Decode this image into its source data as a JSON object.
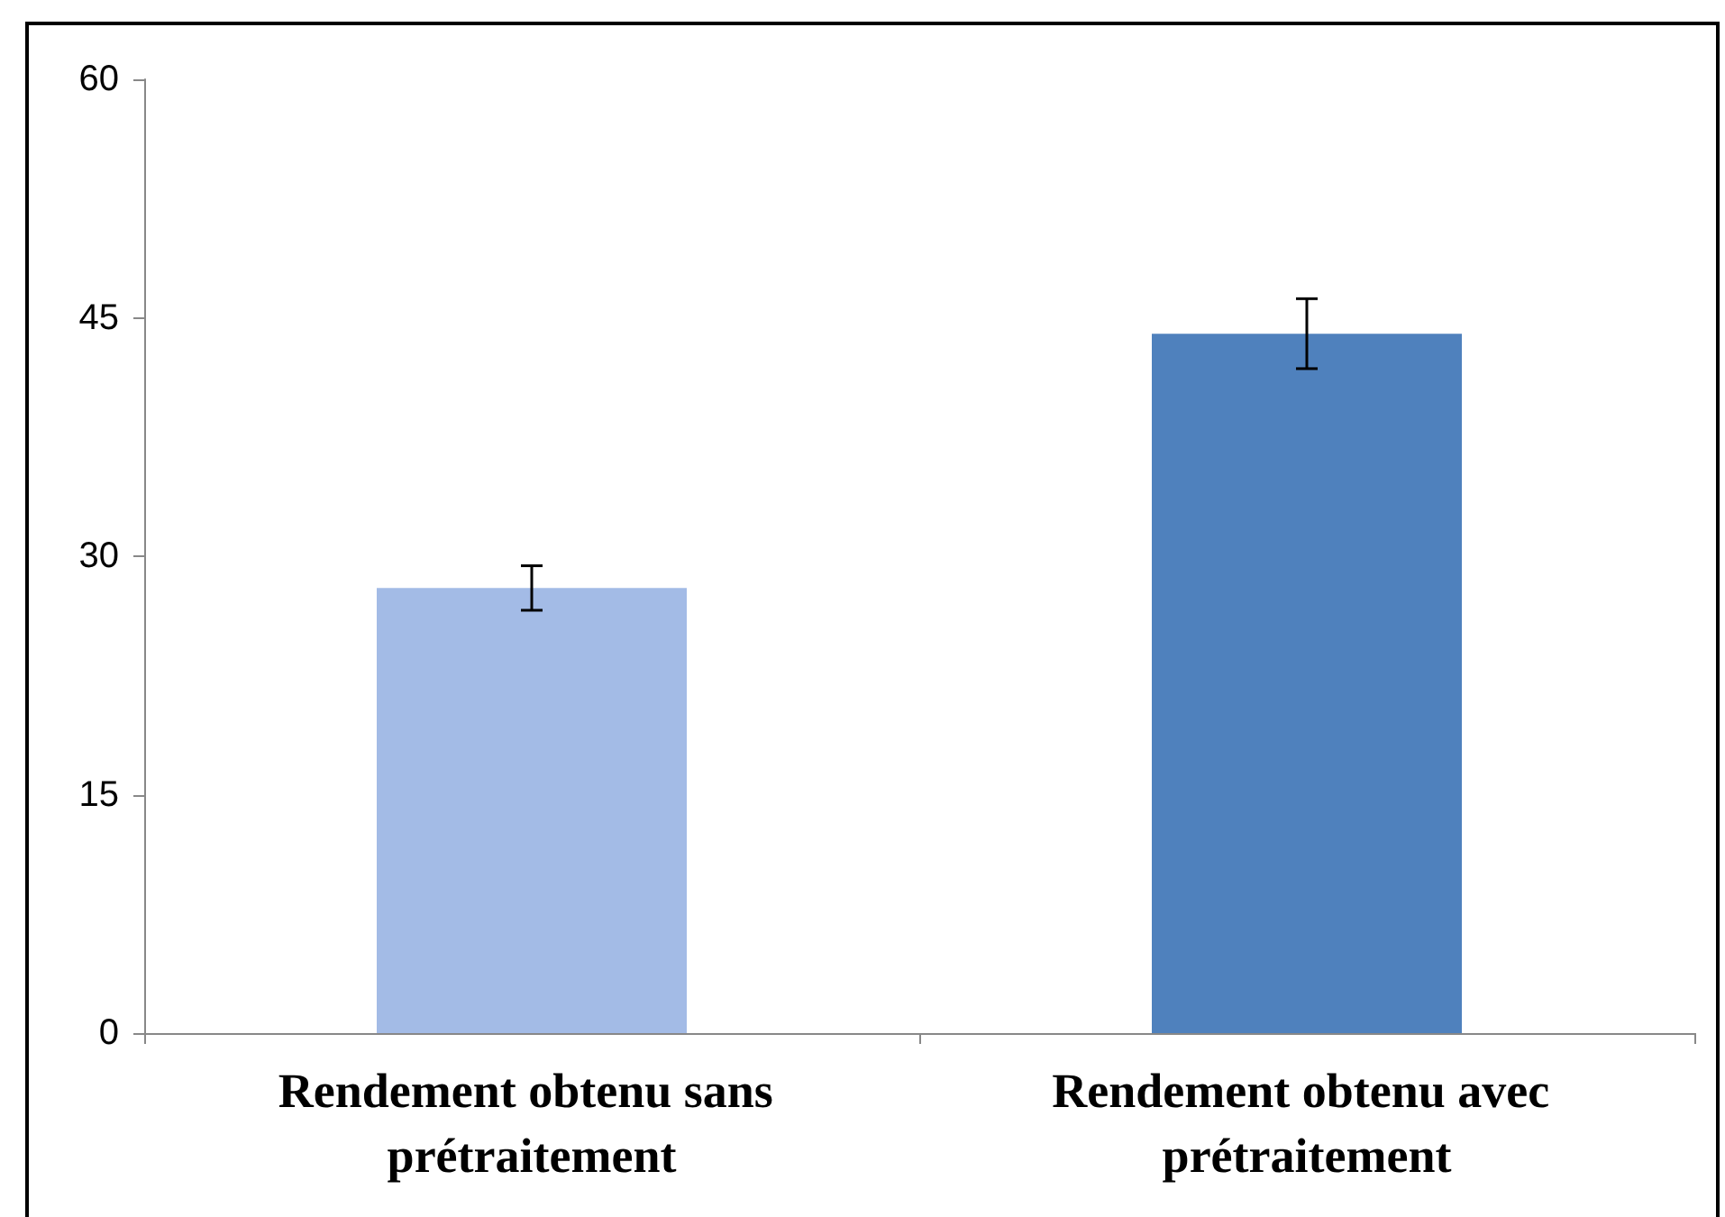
{
  "chart_data": {
    "type": "bar",
    "categories": [
      "Rendement obtenu sans prétraitement",
      "Rendement obtenu avec prétraitement"
    ],
    "values": [
      28,
      44
    ],
    "colors": [
      "#a3bbe6",
      "#4f81bd"
    ],
    "errors": [
      1.4,
      2.2
    ],
    "ylim": [
      0,
      60
    ],
    "yticks": [
      0,
      15,
      30,
      45,
      60
    ],
    "grid": false
  }
}
